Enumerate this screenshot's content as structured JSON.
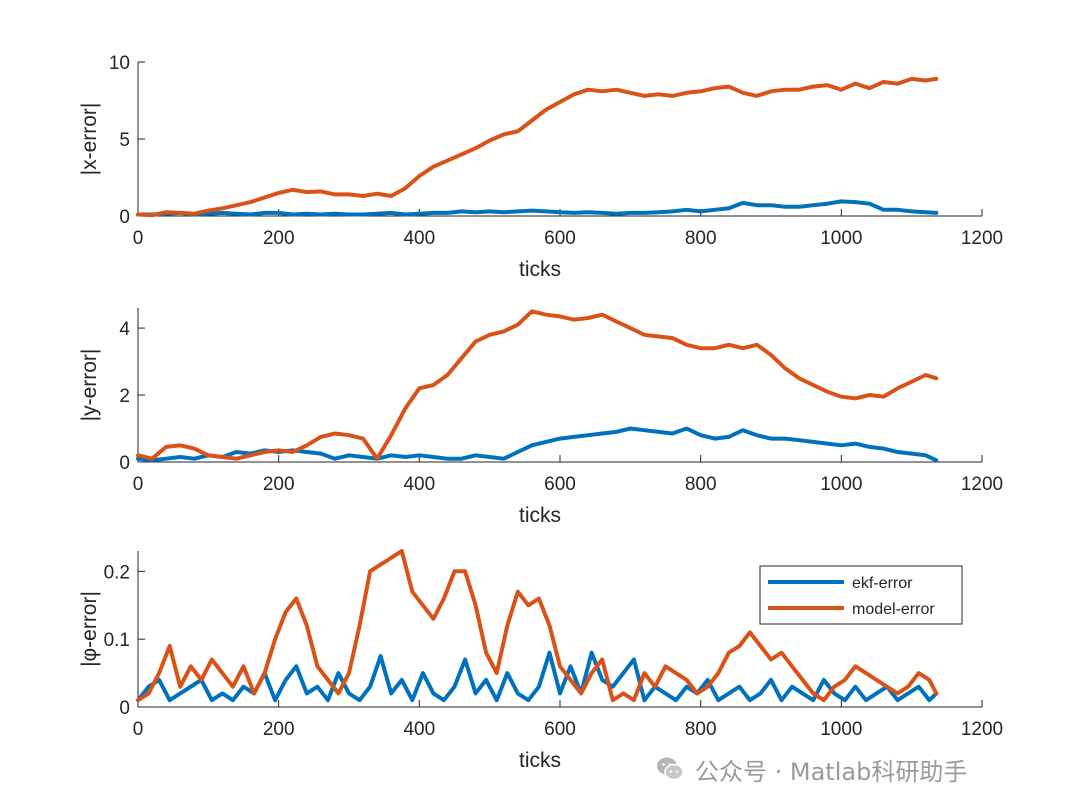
{
  "chart_data": [
    {
      "type": "line",
      "ylabel": "|x-error|",
      "xlabel": "ticks",
      "xlim": [
        0,
        1200
      ],
      "ylim": [
        0,
        10
      ],
      "xticks": [
        "0",
        "200",
        "400",
        "600",
        "800",
        "1000",
        "1200"
      ],
      "yticks": [
        "0",
        "5",
        "10"
      ],
      "series": [
        {
          "name": "ekf-error",
          "color": "#0072BD",
          "x": [
            0,
            20,
            40,
            60,
            80,
            100,
            120,
            140,
            160,
            180,
            200,
            220,
            240,
            260,
            280,
            300,
            320,
            340,
            360,
            380,
            400,
            420,
            440,
            460,
            480,
            500,
            520,
            540,
            560,
            580,
            600,
            620,
            640,
            660,
            680,
            700,
            720,
            740,
            760,
            780,
            800,
            820,
            840,
            860,
            880,
            900,
            920,
            940,
            960,
            980,
            1000,
            1020,
            1040,
            1060,
            1080,
            1100,
            1120,
            1135
          ],
          "y": [
            0.1,
            0.1,
            0.15,
            0.2,
            0.1,
            0.15,
            0.2,
            0.15,
            0.1,
            0.2,
            0.2,
            0.1,
            0.15,
            0.1,
            0.15,
            0.1,
            0.1,
            0.15,
            0.2,
            0.1,
            0.15,
            0.2,
            0.2,
            0.3,
            0.25,
            0.3,
            0.25,
            0.3,
            0.35,
            0.3,
            0.25,
            0.2,
            0.25,
            0.2,
            0.15,
            0.2,
            0.2,
            0.25,
            0.3,
            0.4,
            0.3,
            0.4,
            0.5,
            0.85,
            0.7,
            0.7,
            0.6,
            0.6,
            0.7,
            0.8,
            0.95,
            0.9,
            0.8,
            0.4,
            0.4,
            0.3,
            0.25,
            0.2
          ]
        },
        {
          "name": "model-error",
          "color": "#D95319",
          "x": [
            0,
            20,
            40,
            60,
            80,
            100,
            120,
            140,
            160,
            180,
            200,
            220,
            240,
            260,
            280,
            300,
            320,
            340,
            360,
            380,
            400,
            420,
            440,
            460,
            480,
            500,
            520,
            540,
            560,
            580,
            600,
            620,
            640,
            660,
            680,
            700,
            720,
            740,
            760,
            780,
            800,
            820,
            840,
            860,
            880,
            900,
            920,
            940,
            960,
            980,
            1000,
            1020,
            1040,
            1060,
            1080,
            1100,
            1120,
            1135
          ],
          "y": [
            0.1,
            0.05,
            0.25,
            0.2,
            0.15,
            0.35,
            0.5,
            0.7,
            0.9,
            1.2,
            1.5,
            1.7,
            1.55,
            1.6,
            1.4,
            1.4,
            1.3,
            1.45,
            1.3,
            1.8,
            2.6,
            3.2,
            3.6,
            4.0,
            4.4,
            4.9,
            5.3,
            5.5,
            6.2,
            6.9,
            7.4,
            7.9,
            8.2,
            8.1,
            8.2,
            8.0,
            7.8,
            7.9,
            7.8,
            8.0,
            8.1,
            8.3,
            8.4,
            8.0,
            7.8,
            8.1,
            8.2,
            8.2,
            8.4,
            8.5,
            8.2,
            8.6,
            8.3,
            8.7,
            8.6,
            8.9,
            8.8,
            8.9
          ]
        }
      ]
    },
    {
      "type": "line",
      "ylabel": "|y-error|",
      "xlabel": "ticks",
      "xlim": [
        0,
        1200
      ],
      "ylim": [
        0,
        4.6
      ],
      "xticks": [
        "0",
        "200",
        "400",
        "600",
        "800",
        "1000",
        "1200"
      ],
      "yticks": [
        "0",
        "2",
        "4"
      ],
      "series": [
        {
          "name": "ekf-error",
          "color": "#0072BD",
          "x": [
            0,
            20,
            40,
            60,
            80,
            100,
            120,
            140,
            160,
            180,
            200,
            220,
            240,
            260,
            280,
            300,
            320,
            340,
            360,
            380,
            400,
            420,
            440,
            460,
            480,
            500,
            520,
            540,
            560,
            580,
            600,
            620,
            640,
            660,
            680,
            700,
            720,
            740,
            760,
            780,
            800,
            820,
            840,
            860,
            880,
            900,
            920,
            940,
            960,
            980,
            1000,
            1020,
            1040,
            1060,
            1080,
            1100,
            1120,
            1135
          ],
          "y": [
            0.1,
            0.05,
            0.1,
            0.15,
            0.1,
            0.2,
            0.15,
            0.3,
            0.25,
            0.35,
            0.3,
            0.35,
            0.3,
            0.25,
            0.1,
            0.2,
            0.15,
            0.1,
            0.2,
            0.15,
            0.2,
            0.15,
            0.1,
            0.1,
            0.2,
            0.15,
            0.1,
            0.3,
            0.5,
            0.6,
            0.7,
            0.75,
            0.8,
            0.85,
            0.9,
            1.0,
            0.95,
            0.9,
            0.85,
            1.0,
            0.8,
            0.7,
            0.75,
            0.95,
            0.8,
            0.7,
            0.7,
            0.65,
            0.6,
            0.55,
            0.5,
            0.55,
            0.45,
            0.4,
            0.3,
            0.25,
            0.2,
            0.05
          ]
        },
        {
          "name": "model-error",
          "color": "#D95319",
          "x": [
            0,
            20,
            40,
            60,
            80,
            100,
            120,
            140,
            160,
            180,
            200,
            220,
            240,
            260,
            280,
            300,
            320,
            340,
            360,
            380,
            400,
            420,
            440,
            460,
            480,
            500,
            520,
            540,
            560,
            580,
            600,
            620,
            640,
            660,
            680,
            700,
            720,
            740,
            760,
            780,
            800,
            820,
            840,
            860,
            880,
            900,
            920,
            940,
            960,
            980,
            1000,
            1020,
            1040,
            1060,
            1080,
            1100,
            1120,
            1135
          ],
          "y": [
            0.2,
            0.1,
            0.45,
            0.5,
            0.4,
            0.2,
            0.15,
            0.1,
            0.2,
            0.3,
            0.35,
            0.3,
            0.5,
            0.75,
            0.85,
            0.8,
            0.7,
            0.1,
            0.8,
            1.6,
            2.2,
            2.3,
            2.6,
            3.1,
            3.6,
            3.8,
            3.9,
            4.1,
            4.5,
            4.4,
            4.35,
            4.25,
            4.3,
            4.4,
            4.2,
            4.0,
            3.8,
            3.75,
            3.7,
            3.5,
            3.4,
            3.4,
            3.5,
            3.4,
            3.5,
            3.2,
            2.8,
            2.5,
            2.3,
            2.1,
            1.95,
            1.9,
            2.0,
            1.95,
            2.2,
            2.4,
            2.6,
            2.5
          ]
        }
      ]
    },
    {
      "type": "line",
      "ylabel": "|φ-error|",
      "xlabel": "ticks",
      "xlim": [
        0,
        1200
      ],
      "ylim": [
        0,
        0.23
      ],
      "xticks": [
        "0",
        "200",
        "400",
        "600",
        "800",
        "1000",
        "1200"
      ],
      "yticks": [
        "0",
        "0.1",
        "0.2"
      ],
      "legend": {
        "position": "top-right",
        "entries": [
          "ekf-error",
          "model-error"
        ]
      },
      "series": [
        {
          "name": "ekf-error",
          "color": "#0072BD",
          "x": [
            0,
            15,
            30,
            45,
            60,
            75,
            90,
            105,
            120,
            135,
            150,
            165,
            180,
            195,
            210,
            225,
            240,
            255,
            270,
            285,
            300,
            315,
            330,
            345,
            360,
            375,
            390,
            405,
            420,
            435,
            450,
            465,
            480,
            495,
            510,
            525,
            540,
            555,
            570,
            585,
            600,
            615,
            630,
            645,
            660,
            675,
            690,
            705,
            720,
            735,
            750,
            765,
            780,
            795,
            810,
            825,
            840,
            855,
            870,
            885,
            900,
            915,
            930,
            945,
            960,
            975,
            990,
            1005,
            1020,
            1035,
            1050,
            1065,
            1080,
            1095,
            1110,
            1125,
            1135
          ],
          "y": [
            0.01,
            0.03,
            0.04,
            0.01,
            0.02,
            0.03,
            0.04,
            0.01,
            0.02,
            0.01,
            0.03,
            0.02,
            0.05,
            0.01,
            0.04,
            0.06,
            0.02,
            0.03,
            0.01,
            0.05,
            0.02,
            0.01,
            0.03,
            0.075,
            0.02,
            0.04,
            0.01,
            0.05,
            0.02,
            0.01,
            0.03,
            0.07,
            0.02,
            0.04,
            0.01,
            0.05,
            0.02,
            0.01,
            0.03,
            0.08,
            0.02,
            0.06,
            0.02,
            0.08,
            0.04,
            0.03,
            0.05,
            0.07,
            0.01,
            0.03,
            0.02,
            0.01,
            0.03,
            0.02,
            0.04,
            0.01,
            0.02,
            0.03,
            0.01,
            0.02,
            0.04,
            0.01,
            0.03,
            0.02,
            0.01,
            0.04,
            0.02,
            0.01,
            0.03,
            0.01,
            0.02,
            0.03,
            0.01,
            0.02,
            0.03,
            0.01,
            0.02
          ]
        },
        {
          "name": "model-error",
          "color": "#D95319",
          "x": [
            0,
            15,
            30,
            45,
            60,
            75,
            90,
            105,
            120,
            135,
            150,
            165,
            180,
            195,
            210,
            225,
            240,
            255,
            270,
            285,
            300,
            315,
            330,
            345,
            360,
            375,
            390,
            405,
            420,
            435,
            450,
            465,
            480,
            495,
            510,
            525,
            540,
            555,
            570,
            585,
            600,
            615,
            630,
            645,
            660,
            675,
            690,
            705,
            720,
            735,
            750,
            765,
            780,
            795,
            810,
            825,
            840,
            855,
            870,
            885,
            900,
            915,
            930,
            945,
            960,
            975,
            990,
            1005,
            1020,
            1035,
            1050,
            1065,
            1080,
            1095,
            1110,
            1125,
            1135
          ],
          "y": [
            0.01,
            0.02,
            0.05,
            0.09,
            0.03,
            0.06,
            0.04,
            0.07,
            0.05,
            0.03,
            0.06,
            0.02,
            0.05,
            0.1,
            0.14,
            0.16,
            0.12,
            0.06,
            0.04,
            0.02,
            0.05,
            0.12,
            0.2,
            0.21,
            0.22,
            0.23,
            0.17,
            0.15,
            0.13,
            0.16,
            0.2,
            0.2,
            0.15,
            0.08,
            0.05,
            0.12,
            0.17,
            0.15,
            0.16,
            0.12,
            0.06,
            0.04,
            0.02,
            0.05,
            0.07,
            0.01,
            0.02,
            0.01,
            0.05,
            0.03,
            0.06,
            0.05,
            0.04,
            0.02,
            0.03,
            0.05,
            0.08,
            0.09,
            0.11,
            0.09,
            0.07,
            0.08,
            0.06,
            0.04,
            0.02,
            0.01,
            0.03,
            0.04,
            0.06,
            0.05,
            0.04,
            0.03,
            0.02,
            0.03,
            0.05,
            0.04,
            0.02
          ]
        }
      ]
    }
  ],
  "watermark": {
    "text": "公众号 · Matlab科研助手",
    "icon": "wechat-icon"
  }
}
